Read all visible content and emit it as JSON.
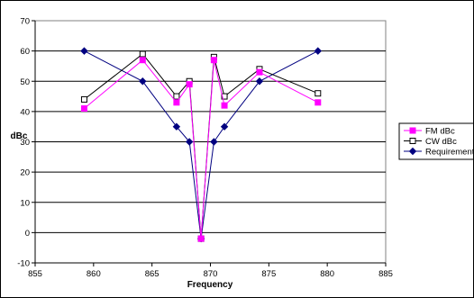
{
  "chart_data": {
    "type": "line",
    "title": "",
    "xlabel": "Frequency",
    "ylabel": "dBc",
    "xlim": [
      855,
      885
    ],
    "ylim": [
      -10,
      70
    ],
    "x_ticks": [
      "855",
      "860",
      "865",
      "870",
      "875",
      "880",
      "885"
    ],
    "y_ticks": [
      "-10",
      "0",
      "10",
      "20",
      "30",
      "40",
      "50",
      "60",
      "70"
    ],
    "grid": "horizontal",
    "legend_position": "right",
    "series": [
      {
        "name": "FM dBc",
        "color": "#ff00ff",
        "marker": "filled-square",
        "points": [
          [
            859.2,
            41
          ],
          [
            864.2,
            57
          ],
          [
            867.1,
            43
          ],
          [
            868.2,
            49
          ],
          [
            869.2,
            -2
          ],
          [
            870.3,
            57
          ],
          [
            871.2,
            42
          ],
          [
            874.2,
            53
          ],
          [
            879.2,
            43
          ]
        ]
      },
      {
        "name": "CW dBc",
        "color": "#000000",
        "marker": "hollow-square",
        "points": [
          [
            859.2,
            44
          ],
          [
            864.2,
            59
          ],
          [
            867.1,
            45
          ],
          [
            868.2,
            50
          ],
          [
            869.2,
            -2
          ],
          [
            870.3,
            58
          ],
          [
            871.2,
            45
          ],
          [
            874.2,
            54
          ],
          [
            879.2,
            46
          ]
        ]
      },
      {
        "name": "Requirement",
        "color": "#000080",
        "marker": "diamond",
        "points": [
          [
            859.2,
            60
          ],
          [
            864.2,
            50
          ],
          [
            867.1,
            35
          ],
          [
            868.2,
            30
          ],
          [
            869.2,
            -2
          ],
          [
            870.3,
            30
          ],
          [
            871.2,
            35
          ],
          [
            874.2,
            50
          ],
          [
            879.2,
            60
          ]
        ]
      }
    ]
  }
}
